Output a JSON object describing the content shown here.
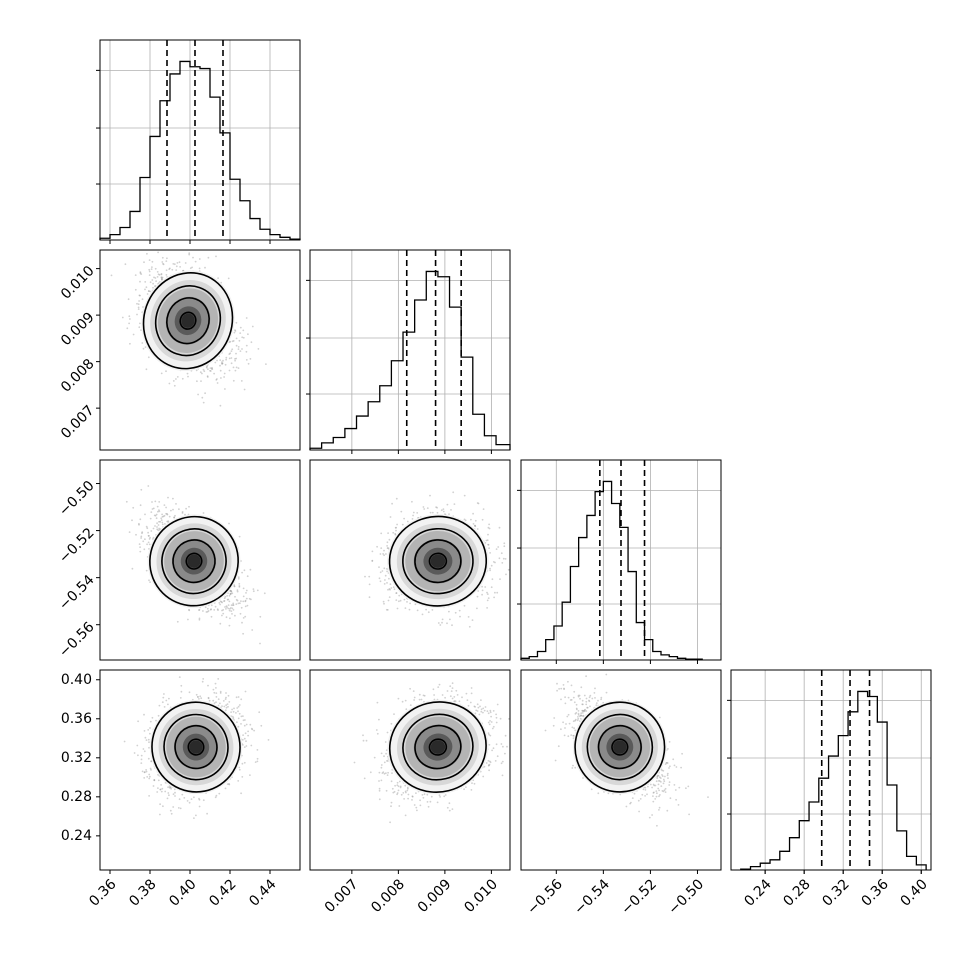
{
  "chart_data": [
    {
      "type": "histogram",
      "panel": "1D marginal of parameter 1",
      "xlim": [
        0.355,
        0.455
      ],
      "x_ticks": [
        "0.36",
        "0.38",
        "0.40",
        "0.42",
        "0.44"
      ],
      "x_ticks_labeled": false,
      "bins": [
        0.355,
        0.36,
        0.365,
        0.37,
        0.375,
        0.38,
        0.385,
        0.39,
        0.395,
        0.4,
        0.405,
        0.41,
        0.415,
        0.42,
        0.425,
        0.43,
        0.435,
        0.44,
        0.445,
        0.45,
        0.455
      ],
      "counts": [
        0.01,
        0.03,
        0.07,
        0.16,
        0.35,
        0.58,
        0.78,
        0.93,
        1.0,
        0.97,
        0.96,
        0.8,
        0.6,
        0.34,
        0.22,
        0.12,
        0.06,
        0.03,
        0.015,
        0.005
      ],
      "quantiles": [
        0.3885,
        0.4025,
        0.4165
      ],
      "grid": true
    },
    {
      "type": "histogram",
      "panel": "1D marginal of parameter 2",
      "xlim": [
        0.0061,
        0.0104
      ],
      "x_ticks": [
        "0.007",
        "0.008",
        "0.009",
        "0.010"
      ],
      "x_ticks_labeled": false,
      "bins": [
        0.0061,
        0.00635,
        0.0066,
        0.00685,
        0.0071,
        0.00735,
        0.0076,
        0.00785,
        0.0081,
        0.00835,
        0.0086,
        0.00885,
        0.0091,
        0.00935,
        0.0096,
        0.00985,
        0.0101,
        0.0104
      ],
      "counts": [
        0.01,
        0.04,
        0.07,
        0.12,
        0.19,
        0.27,
        0.36,
        0.5,
        0.66,
        0.84,
        1.0,
        0.97,
        0.8,
        0.52,
        0.2,
        0.08,
        0.03
      ],
      "quantiles": [
        0.00818,
        0.0088,
        0.00935
      ],
      "grid": true
    },
    {
      "type": "histogram",
      "panel": "1D marginal of parameter 3",
      "xlim": [
        -0.575,
        -0.49
      ],
      "x_ticks": [
        "−0.56",
        "−0.54",
        "−0.52",
        "−0.50"
      ],
      "x_ticks_labeled": true,
      "bins": [
        -0.575,
        -0.5715,
        -0.568,
        -0.5645,
        -0.561,
        -0.5575,
        -0.554,
        -0.5505,
        -0.547,
        -0.5435,
        -0.54,
        -0.5365,
        -0.533,
        -0.5295,
        -0.526,
        -0.5225,
        -0.519,
        -0.5155,
        -0.512,
        -0.5085,
        -0.505,
        -0.5015,
        -0.498
      ],
      "counts": [
        0.01,
        0.02,
        0.05,
        0.12,
        0.2,
        0.34,
        0.55,
        0.72,
        0.85,
        0.99,
        1.05,
        0.92,
        0.78,
        0.52,
        0.22,
        0.12,
        0.05,
        0.03,
        0.02,
        0.01,
        0.005,
        0.005
      ],
      "quantiles": [
        -0.5415,
        -0.5325,
        -0.5225
      ],
      "grid": true
    },
    {
      "type": "histogram",
      "panel": "1D marginal of parameter 4",
      "xlim": [
        0.205,
        0.41
      ],
      "x_ticks": [
        "0.24",
        "0.28",
        "0.32",
        "0.36",
        "0.40"
      ],
      "x_ticks_labeled": true,
      "bins": [
        0.215,
        0.225,
        0.235,
        0.245,
        0.255,
        0.265,
        0.275,
        0.285,
        0.295,
        0.305,
        0.315,
        0.325,
        0.335,
        0.345,
        0.355,
        0.365,
        0.375,
        0.385,
        0.395,
        0.405
      ],
      "counts": [
        0.005,
        0.02,
        0.04,
        0.06,
        0.11,
        0.19,
        0.29,
        0.4,
        0.54,
        0.67,
        0.79,
        0.93,
        1.05,
        1.02,
        0.87,
        0.5,
        0.23,
        0.08,
        0.03
      ],
      "quantiles": [
        0.298,
        0.327,
        0.347
      ],
      "grid": true
    },
    {
      "type": "scatter",
      "panel": "2D param1 vs param2",
      "xlim": [
        0.355,
        0.455
      ],
      "ylim": [
        0.0061,
        0.0104
      ],
      "y_ticks": [
        "0.007",
        "0.008",
        "0.009",
        "0.010"
      ],
      "center": [
        0.399,
        0.00888
      ],
      "sd": [
        0.011,
        0.00052
      ],
      "corr": -0.35,
      "contours": "4 density levels, peak at (0.399, 0.00888)"
    },
    {
      "type": "scatter",
      "panel": "2D param1 vs param3",
      "xlim": [
        0.355,
        0.455
      ],
      "ylim": [
        -0.575,
        -0.49
      ],
      "y_ticks": [
        "−0.50",
        "−0.52",
        "−0.54",
        "−0.56"
      ],
      "center": [
        0.402,
        -0.533
      ],
      "sd": [
        0.011,
        0.0095
      ],
      "corr": -0.55,
      "contours": "4 density levels, peak at (0.400, -0.532)"
    },
    {
      "type": "scatter",
      "panel": "2D param2 vs param3",
      "xlim": [
        0.0061,
        0.0104
      ],
      "ylim": [
        -0.575,
        -0.49
      ],
      "center": [
        0.00885,
        -0.533
      ],
      "sd": [
        0.00052,
        0.0095
      ],
      "corr": 0.05,
      "contours": "4 density levels, peak at (0.0089, -0.533)"
    },
    {
      "type": "scatter",
      "panel": "2D param1 vs param4",
      "xlim": [
        0.355,
        0.455
      ],
      "ylim": [
        0.205,
        0.41
      ],
      "x_ticks": [
        "0.36",
        "0.38",
        "0.40",
        "0.42",
        "0.44"
      ],
      "y_ticks": [
        "0.40",
        "0.36",
        "0.32",
        "0.28",
        "0.24"
      ],
      "center": [
        0.403,
        0.331
      ],
      "sd": [
        0.011,
        0.023
      ],
      "corr": 0.2,
      "contours": "4 density levels, peak at (0.405, 0.338)"
    },
    {
      "type": "scatter",
      "panel": "2D param2 vs param4",
      "xlim": [
        0.0061,
        0.0104
      ],
      "ylim": [
        0.205,
        0.41
      ],
      "x_ticks": [
        "0.007",
        "0.008",
        "0.009",
        "0.010"
      ],
      "center": [
        0.00885,
        0.331
      ],
      "sd": [
        0.00052,
        0.023
      ],
      "corr": 0.25,
      "contours": "4 density levels, peak at (0.0089, 0.333)"
    },
    {
      "type": "scatter",
      "panel": "2D param3 vs param4",
      "xlim": [
        -0.575,
        -0.49
      ],
      "ylim": [
        0.205,
        0.41
      ],
      "x_ticks": [
        "−0.56",
        "−0.54",
        "−0.52",
        "−0.50"
      ],
      "center": [
        -0.533,
        0.331
      ],
      "sd": [
        0.0095,
        0.023
      ],
      "corr": -0.55,
      "contours": "4 density levels, peak at (-0.534, 0.335)"
    }
  ]
}
